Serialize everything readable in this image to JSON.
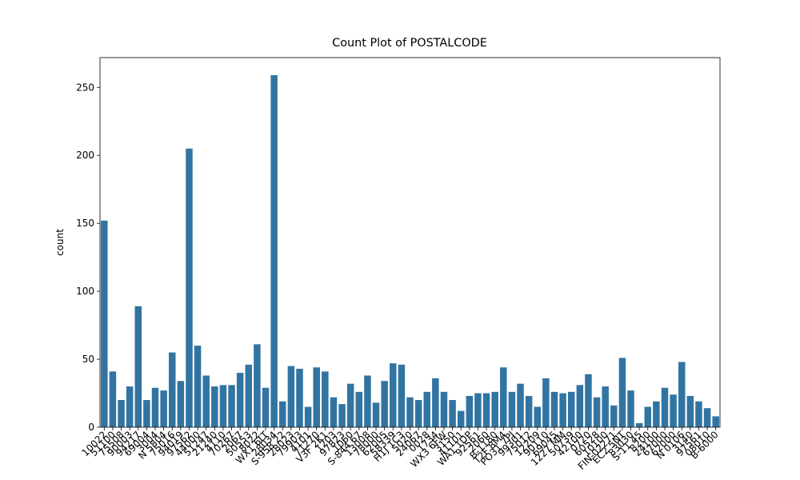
{
  "chart_data": {
    "type": "bar",
    "title": "Count Plot of POSTALCODE",
    "y_label": "count",
    "color": "#3274a1",
    "categories": [
      "10022",
      "51100",
      "75508",
      "90003",
      "94217",
      "69004",
      "3004",
      "N 5804",
      "75016",
      "94019",
      "97562",
      "44000",
      "51247",
      "21240",
      "4110",
      "70267",
      "2067",
      "50553",
      "8022",
      "WX1 6LT",
      "28034",
      "S-958 22",
      "28023",
      "79903",
      "4101",
      "71270",
      "V3F 2K1",
      "1203",
      "97823",
      "1060",
      "S-844 67",
      "13008",
      "78000",
      "62005",
      "58339",
      "H1J 1C3",
      "5020",
      "24067",
      "0028",
      "1734",
      "WX3 6FW",
      "3150",
      "41101",
      "WA1 1DP",
      "92561",
      "2060",
      "B-1180",
      "T2F 8M4",
      "PO31 7PJ",
      "99301",
      "75012",
      "12209",
      "90110",
      "69045",
      "1227 MM",
      "50739",
      "42100",
      "0720",
      "60528",
      "10100",
      "FIN-02271",
      "EC2 5NT",
      "83030",
      "S-11 45",
      "8200",
      "24100",
      "67000",
      "62000",
      "N 0106",
      "3140",
      "97561",
      "08010",
      "B-6000"
    ],
    "values": [
      152,
      41,
      20,
      30,
      89,
      20,
      29,
      27,
      55,
      34,
      205,
      60,
      38,
      30,
      31,
      31,
      40,
      46,
      61,
      29,
      259,
      19,
      45,
      43,
      15,
      44,
      41,
      22,
      17,
      32,
      26,
      38,
      18,
      34,
      47,
      46,
      22,
      20,
      26,
      36,
      26,
      20,
      12,
      23,
      25,
      25,
      26,
      44,
      26,
      32,
      23,
      15,
      36,
      26,
      25,
      26,
      31,
      39,
      22,
      30,
      16,
      51,
      27,
      3,
      15,
      19,
      29,
      24,
      48,
      23,
      19,
      14,
      8
    ],
    "ylim": [
      0,
      271.95
    ],
    "yticks": [
      0,
      50,
      100,
      150,
      200,
      250
    ]
  }
}
